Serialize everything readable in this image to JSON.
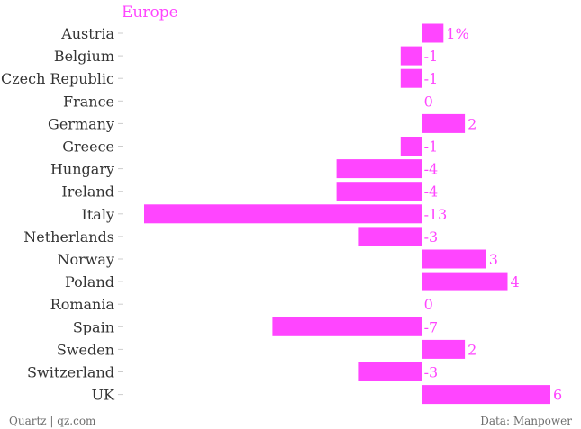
{
  "chart_data": {
    "type": "bar",
    "orientation": "horizontal",
    "title": "Europe",
    "categories": [
      "Austria",
      "Belgium",
      "Czech Republic",
      "France",
      "Germany",
      "Greece",
      "Hungary",
      "Ireland",
      "Italy",
      "Netherlands",
      "Norway",
      "Poland",
      "Romania",
      "Spain",
      "Sweden",
      "Switzerland",
      "UK"
    ],
    "values": [
      1,
      -1,
      -1,
      0,
      2,
      -1,
      -4,
      -4,
      -13,
      -3,
      3,
      4,
      0,
      -7,
      2,
      -3,
      6
    ],
    "value_labels": [
      "1%",
      "-1",
      "-1",
      "0",
      "2",
      "-1",
      "-4",
      "-4",
      "-13",
      "-3",
      "3",
      "4",
      "0",
      "-7",
      "2",
      "-3",
      "6"
    ],
    "xlim": [
      -13,
      6
    ],
    "grid": false,
    "legend": "none",
    "colors": {
      "bar": "#ff45ff",
      "label": "#333333",
      "footer": "#6e6e6e"
    }
  },
  "footer": {
    "source_left": "Quartz | qz.com",
    "source_right": "Data: Manpower"
  }
}
